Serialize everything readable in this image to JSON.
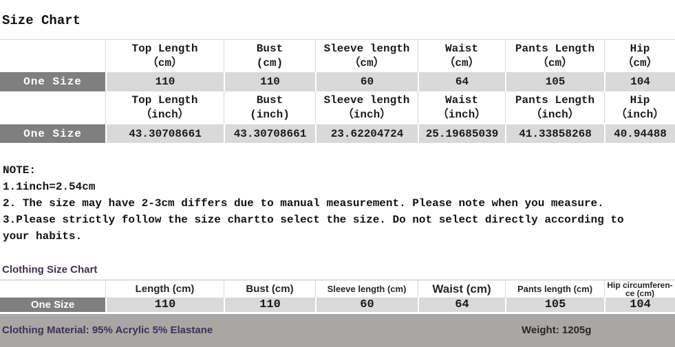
{
  "page_title": "Size Chart",
  "size_table": {
    "cm": {
      "headers": [
        {
          "name": "Top Length",
          "unit": "（cm）"
        },
        {
          "name": "Bust",
          "unit": "(cm)"
        },
        {
          "name": "Sleeve length",
          "unit": "（cm）"
        },
        {
          "name": "Waist",
          "unit": "（cm）"
        },
        {
          "name": "Pants Length",
          "unit": "（cm）"
        },
        {
          "name": "Hip",
          "unit": "（cm）"
        }
      ],
      "row_label": "One Size",
      "values": [
        "110",
        "110",
        "60",
        "64",
        "105",
        "104"
      ]
    },
    "inch": {
      "headers": [
        {
          "name": "Top Length",
          "unit": "（inch）"
        },
        {
          "name": "Bust",
          "unit": "(inch)"
        },
        {
          "name": "Sleeve length",
          "unit": "（inch）"
        },
        {
          "name": "Waist",
          "unit": "（inch）"
        },
        {
          "name": "Pants Length",
          "unit": "（inch）"
        },
        {
          "name": "Hip",
          "unit": "（inch）"
        }
      ],
      "row_label": "One Size",
      "values": [
        "43.30708661",
        "43.30708661",
        "23.62204724",
        "25.19685039",
        "41.33858268",
        "40.94488"
      ]
    }
  },
  "note": {
    "title": "NOTE:",
    "lines": [
      "1.1inch=2.54cm",
      "2. The size may have 2-3cm differs due to manual measurement. Please note when you measure.",
      "3.Please strictly follow the size chartto select the size. Do not select directly according to your habits."
    ]
  },
  "clothing_chart": {
    "title": "Clothing Size Chart",
    "headers": [
      "Length (cm)",
      "Bust (cm)",
      "Sleeve length (cm)",
      "Waist (cm)",
      "Pants length (cm)",
      "Hip circumferen-\nce (cm)"
    ],
    "row_label": "One Size",
    "values": [
      "110",
      "110",
      "60",
      "64",
      "105",
      "104"
    ]
  },
  "footer": {
    "material": "Clothing Material: 95% Acrylic 5% Elastane",
    "weight": "Weight: 1205g"
  },
  "colors": {
    "row_label_bg": "#7F7F7F",
    "value_cell_bg": "#D9D9D9",
    "footer_bar_bg": "#A9A6A6",
    "accent_purple": "#3F3151"
  }
}
